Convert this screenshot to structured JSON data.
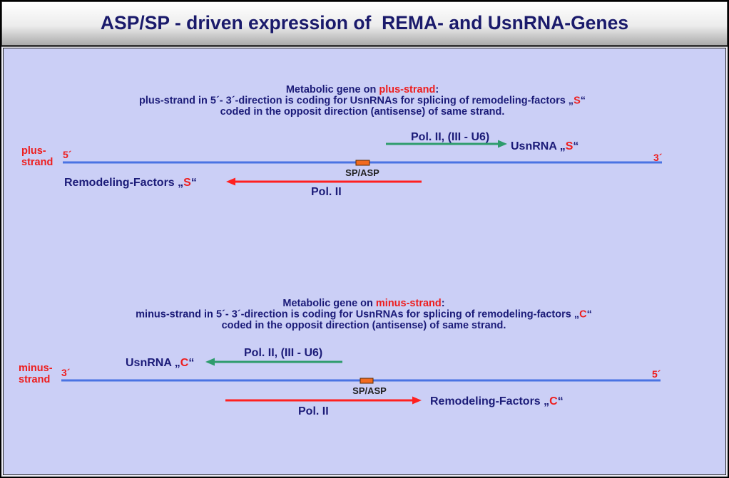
{
  "title": "ASP/SP - driven expression of  REMA- and UsnRNA-Genes",
  "plus_section": {
    "description": {
      "line1": {
        "prefix": "Metabolic gene on ",
        "highlight": "plus-strand",
        "suffix": ":"
      },
      "line2": {
        "prefix": "plus-strand in 5´- 3´-direction is coding for UsnRNAs for splicing of remodeling-factors „",
        "highlight": "S",
        "suffix": "“"
      },
      "line3": "coded in the opposit direction (antisense) of same strand."
    },
    "strand_label": {
      "line1": "plus-",
      "line2": "strand"
    },
    "left_end": "5´",
    "right_end": "3´",
    "promoter_label": "SP/ASP",
    "usnrna_polymerase": "Pol. II, (III - U6)",
    "usnrna_product": {
      "prefix": "UsnRNA „",
      "highlight": "S",
      "suffix": "“"
    },
    "remodeling_polymerase": "Pol. II",
    "remodeling_product": {
      "prefix": "Remodeling-Factors „",
      "highlight": "S",
      "suffix": "“"
    }
  },
  "minus_section": {
    "description": {
      "line1": {
        "prefix": "Metabolic gene on ",
        "highlight": "minus-strand",
        "suffix": ":"
      },
      "line2": {
        "prefix": "minus-strand in 5´- 3´-direction is coding for UsnRNAs for splicing of remodeling-factors „",
        "highlight": "C",
        "suffix": "“"
      },
      "line3": "coded in the opposit direction (antisense) of same strand."
    },
    "strand_label": {
      "line1": "minus-",
      "line2": "strand"
    },
    "left_end": "3´",
    "right_end": "5´",
    "promoter_label": "SP/ASP",
    "usnrna_polymerase": "Pol. II, (III - U6)",
    "usnrna_product": {
      "prefix": "UsnRNA „",
      "highlight": "C",
      "suffix": "“"
    },
    "remodeling_polymerase": "Pol. II",
    "remodeling_product": {
      "prefix": "Remodeling-Factors „",
      "highlight": "C",
      "suffix": "“"
    }
  },
  "colors": {
    "title_text": "#1a1a6b",
    "text": "#1b1b78",
    "highlight": "#ee1d1d",
    "panel": "#cbcff6",
    "strand": "#4a73e3",
    "promoter": "#f26b1f",
    "promoter_label": "#222222",
    "usnrna_arrow": "#2e9c6c",
    "remodeling_arrow": "#ff2020"
  }
}
